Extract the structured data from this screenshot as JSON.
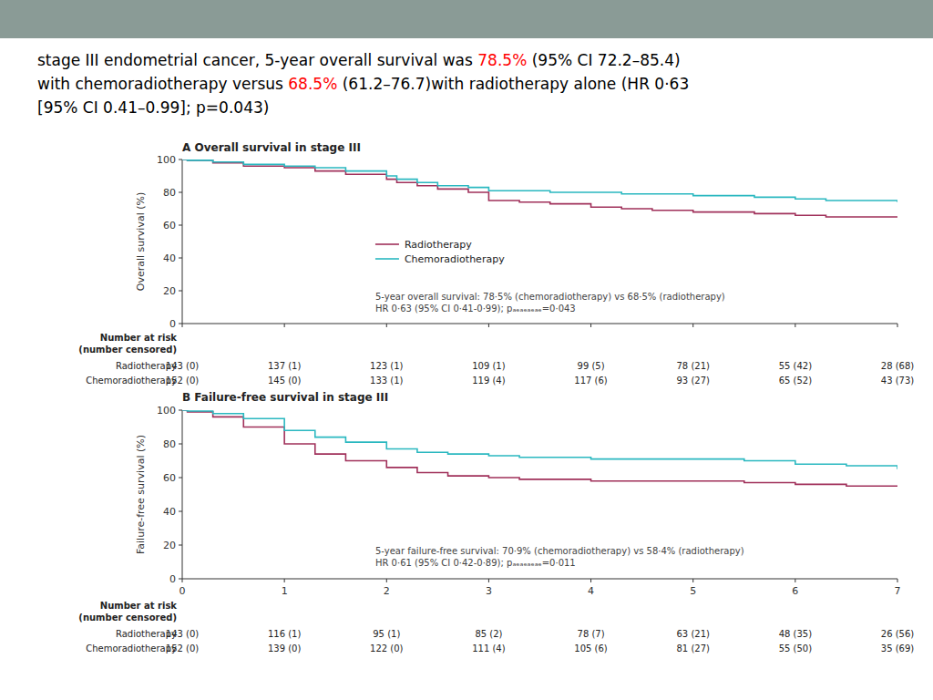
{
  "title_lines": [
    [
      {
        "text": "stage III endometrial cancer, 5-year overall survival was ",
        "color": "black"
      },
      {
        "text": "78.5%",
        "color": "red"
      },
      {
        "text": " (95% CI 72.2–85.4)",
        "color": "black"
      }
    ],
    [
      {
        "text": "with chemoradiotherapy versus ",
        "color": "black"
      },
      {
        "text": "68.5%",
        "color": "red"
      },
      {
        "text": " (61.2–76.7)with radiotherapy alone (HR 0·63",
        "color": "black"
      }
    ],
    [
      {
        "text": "[95% CI 0.41–0.99]; p=0.043)",
        "color": "black"
      }
    ]
  ],
  "chart_data": [
    {
      "type": "line",
      "line_style": "step",
      "title": "A  Overall survival in stage III",
      "ylabel": "Overall survival (%)",
      "xlim": [
        0,
        7
      ],
      "ylim": [
        0,
        100
      ],
      "xticks": [
        0,
        1,
        2,
        3,
        4,
        5,
        6,
        7
      ],
      "yticks": [
        0,
        20,
        40,
        60,
        80,
        100
      ],
      "tick_labels": "y",
      "grid": false,
      "legend": "lower left",
      "x": [
        0,
        0.05,
        0.3,
        0.6,
        1.0,
        1.3,
        1.6,
        2.0,
        2.1,
        2.3,
        2.5,
        2.8,
        3.0,
        3.3,
        3.6,
        4.0,
        4.3,
        4.6,
        5.0,
        5.3,
        5.6,
        6.0,
        6.3,
        6.6,
        7.0
      ],
      "series": [
        {
          "name": "Radiotherapy",
          "color": "#a0305a",
          "values": [
            100,
            99.5,
            98,
            96,
            95,
            93,
            91,
            88,
            86,
            84,
            82,
            80,
            75,
            74,
            73,
            71,
            70,
            69,
            68,
            68,
            67,
            66,
            65,
            65,
            65
          ]
        },
        {
          "name": "Chemoradiotherapy",
          "color": "#2ab8c0",
          "values": [
            100,
            99.5,
            98.5,
            97,
            96,
            95,
            93,
            90,
            88,
            86,
            84,
            83,
            81,
            81,
            80,
            80,
            79,
            79,
            78,
            78,
            77,
            76,
            75,
            75,
            74
          ]
        }
      ],
      "annotations": [
        "5-year overall survival: 78·5% (chemoradiotherapy) vs 68·5% (radiotherapy)",
        "HR 0·63 (95% CI 0·41-0·99); pₐₑₐₑₐₑₐₑ=0·043"
      ],
      "at_risk": {
        "title": "Number at risk",
        "subtitle": "(number censored)",
        "rows": [
          {
            "name": "Radiotherapy",
            "values": [
              "143 (0)",
              "137 (1)",
              "123 (1)",
              "109 (1)",
              "99 (5)",
              "78 (21)",
              "55 (42)",
              "28 (68)"
            ]
          },
          {
            "name": "Chemoradiotherapy",
            "values": [
              "152 (0)",
              "145 (0)",
              "133 (1)",
              "119 (4)",
              "117 (6)",
              "93 (27)",
              "65 (52)",
              "43 (73)"
            ]
          }
        ]
      }
    },
    {
      "type": "line",
      "line_style": "step",
      "title": "B  Failure-free survival in stage III",
      "ylabel": "Failure-free survival (%)",
      "xlim": [
        0,
        7
      ],
      "ylim": [
        0,
        100
      ],
      "xticks": [
        0,
        1,
        2,
        3,
        4,
        5,
        6,
        7
      ],
      "yticks": [
        0,
        20,
        40,
        60,
        80,
        100
      ],
      "grid": false,
      "x": [
        0,
        0.05,
        0.3,
        0.6,
        1.0,
        1.3,
        1.6,
        2.0,
        2.3,
        2.6,
        3.0,
        3.3,
        3.6,
        4.0,
        4.5,
        5.0,
        5.5,
        6.0,
        6.5,
        7.0
      ],
      "series": [
        {
          "name": "Radiotherapy",
          "color": "#a0305a",
          "values": [
            100,
            99,
            96,
            90,
            80,
            74,
            70,
            66,
            63,
            61,
            60,
            59,
            59,
            58,
            58,
            58,
            57,
            56,
            55,
            55
          ]
        },
        {
          "name": "Chemoradiotherapy",
          "color": "#2ab8c0",
          "values": [
            100,
            99.5,
            98,
            95,
            88,
            84,
            81,
            77,
            75,
            74,
            73,
            72,
            72,
            71,
            71,
            71,
            70,
            68,
            67,
            65
          ]
        }
      ],
      "annotations": [
        "5-year failure-free survival: 70·9% (chemoradiotherapy) vs 58·4% (radiotherapy)",
        "HR 0·61 (95% CI 0·42-0·89); pₐₑₐₑₐₑₐₑ=0·011"
      ],
      "at_risk": {
        "title": "Number at risk",
        "subtitle": "(number censored)",
        "rows": [
          {
            "name": "Radiotherapy",
            "values": [
              "143 (0)",
              "116 (1)",
              "95 (1)",
              "85 (2)",
              "78 (7)",
              "63 (21)",
              "48 (35)",
              "26 (56)"
            ]
          },
          {
            "name": "Chemoradiotherapy",
            "values": [
              "152 (0)",
              "139 (0)",
              "122 (0)",
              "111 (4)",
              "105 (6)",
              "81 (27)",
              "55 (50)",
              "35 (69)"
            ]
          }
        ]
      }
    }
  ]
}
